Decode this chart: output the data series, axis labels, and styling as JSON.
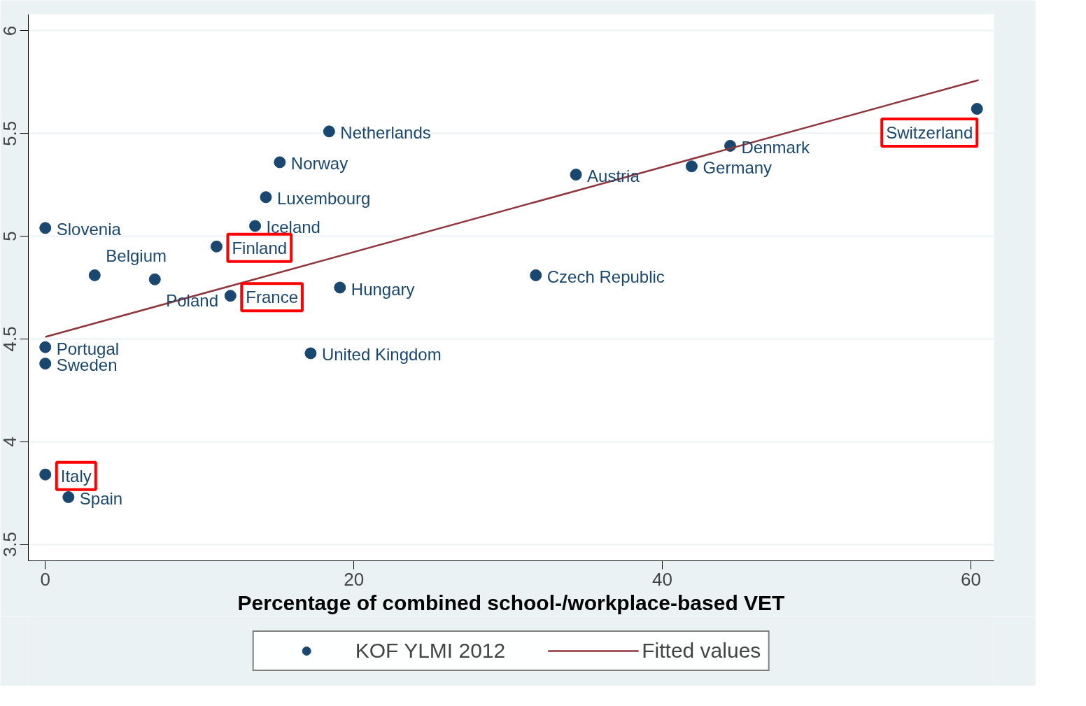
{
  "chart_data": {
    "type": "scatter",
    "xlabel": "Percentage of combined school-/workplace-based VET",
    "xlim": [
      -1.1,
      61.5
    ],
    "ylim": [
      3.42,
      6.08
    ],
    "xticks": [
      0,
      20,
      40,
      60
    ],
    "yticks": [
      3.5,
      4,
      4.5,
      5,
      5.5,
      6
    ],
    "grid": "y",
    "legend": "bottom",
    "series": [
      {
        "name": "KOF YLMI 2012",
        "marker": "circle",
        "color": "#1a476f",
        "x": [
          60.4,
          44.4,
          41.9,
          34.4,
          31.8,
          18.4,
          15.2,
          14.3,
          13.6,
          11.1,
          12.0,
          19.1,
          17.2,
          0,
          3.2,
          7.1,
          0,
          0,
          0,
          1.5
        ],
        "values": [
          5.62,
          5.44,
          5.34,
          5.3,
          4.81,
          5.51,
          5.36,
          5.19,
          5.05,
          4.95,
          4.71,
          4.75,
          4.43,
          5.04,
          4.81,
          4.79,
          4.46,
          4.38,
          3.84,
          3.73
        ]
      },
      {
        "name": "Fitted values",
        "type": "line",
        "color": "#90353b",
        "x": [
          0,
          60.5
        ],
        "values": [
          4.51,
          5.76
        ]
      }
    ],
    "annotations": [
      {
        "text": "Switzerland",
        "x": 60.4,
        "y": 5.62
      },
      {
        "text": "Denmark",
        "x": 44.4,
        "y": 5.44
      },
      {
        "text": "Germany",
        "x": 41.9,
        "y": 5.34
      },
      {
        "text": "Austria",
        "x": 34.4,
        "y": 5.3
      },
      {
        "text": "Czech Republic",
        "x": 31.8,
        "y": 4.81
      },
      {
        "text": "Netherlands",
        "x": 18.4,
        "y": 5.51
      },
      {
        "text": "Norway",
        "x": 15.2,
        "y": 5.36
      },
      {
        "text": "Luxembourg",
        "x": 14.3,
        "y": 5.19
      },
      {
        "text": "Iceland",
        "x": 13.6,
        "y": 5.05
      },
      {
        "text": "Finland",
        "x": 11.1,
        "y": 4.95
      },
      {
        "text": "France",
        "x": 12.0,
        "y": 4.71
      },
      {
        "text": "Hungary",
        "x": 19.1,
        "y": 4.75
      },
      {
        "text": "United Kingdom",
        "x": 17.2,
        "y": 4.43
      },
      {
        "text": "Slovenia",
        "x": 0,
        "y": 5.04
      },
      {
        "text": "Belgium",
        "x": 3.2,
        "y": 4.81
      },
      {
        "text": "Poland",
        "x": 7.1,
        "y": 4.79
      },
      {
        "text": "Portugal",
        "x": 0,
        "y": 4.46
      },
      {
        "text": "Sweden",
        "x": 0,
        "y": 4.38
      },
      {
        "text": "Italy",
        "x": 0,
        "y": 3.84
      },
      {
        "text": "Spain",
        "x": 1.5,
        "y": 3.73
      }
    ]
  }
}
